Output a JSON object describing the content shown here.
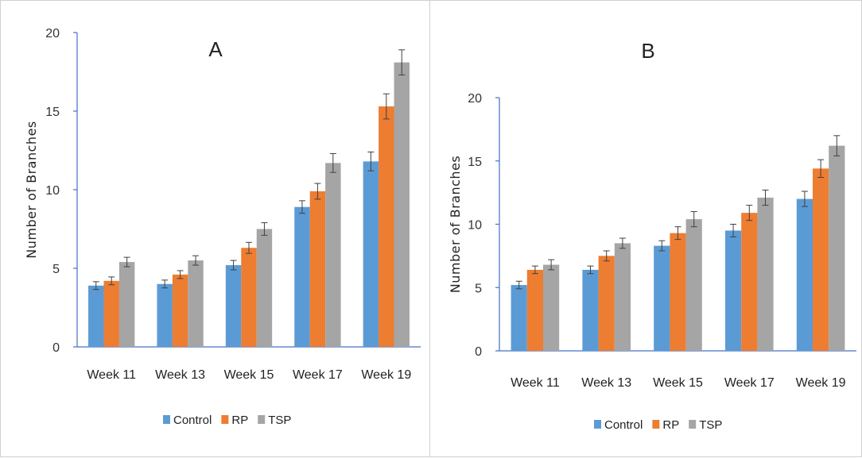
{
  "colors": {
    "Control": "#5b9bd5",
    "RP": "#ed7d31",
    "TSP": "#a5a5a5",
    "axis": "#4472c4",
    "errorbar": "#404040"
  },
  "chart_data": [
    {
      "type": "bar",
      "title": "A",
      "xlabel": "",
      "ylabel": "Number of Branches",
      "ylim": [
        0,
        20
      ],
      "yticks": [
        0,
        5,
        10,
        15,
        20
      ],
      "categories": [
        "Week 11",
        "Week 13",
        "Week 15",
        "Week 17",
        "Week 19"
      ],
      "series": [
        {
          "name": "Control",
          "values": [
            3.9,
            4.0,
            5.2,
            8.9,
            11.8
          ],
          "errors": [
            0.25,
            0.25,
            0.3,
            0.4,
            0.6
          ]
        },
        {
          "name": "RP",
          "values": [
            4.2,
            4.6,
            6.3,
            9.9,
            15.3
          ],
          "errors": [
            0.25,
            0.25,
            0.35,
            0.5,
            0.8
          ]
        },
        {
          "name": "TSP",
          "values": [
            5.4,
            5.5,
            7.5,
            11.7,
            18.1
          ],
          "errors": [
            0.3,
            0.3,
            0.4,
            0.6,
            0.8
          ]
        }
      ],
      "legend": "bottom",
      "grid": false
    },
    {
      "type": "bar",
      "title": "B",
      "xlabel": "",
      "ylabel": "Number of Branches",
      "ylim": [
        0,
        20
      ],
      "yticks": [
        0,
        5,
        10,
        15,
        20
      ],
      "categories": [
        "Week 11",
        "Week 13",
        "Week 15",
        "Week 17",
        "Week 19"
      ],
      "series": [
        {
          "name": "Control",
          "values": [
            5.2,
            6.4,
            8.3,
            9.5,
            12.0
          ],
          "errors": [
            0.3,
            0.3,
            0.4,
            0.5,
            0.6
          ]
        },
        {
          "name": "RP",
          "values": [
            6.4,
            7.5,
            9.3,
            10.9,
            14.4
          ],
          "errors": [
            0.3,
            0.4,
            0.5,
            0.6,
            0.7
          ]
        },
        {
          "name": "TSP",
          "values": [
            6.8,
            8.5,
            10.4,
            12.1,
            16.2
          ],
          "errors": [
            0.4,
            0.4,
            0.6,
            0.6,
            0.8
          ]
        }
      ],
      "legend": "bottom",
      "grid": false
    }
  ]
}
